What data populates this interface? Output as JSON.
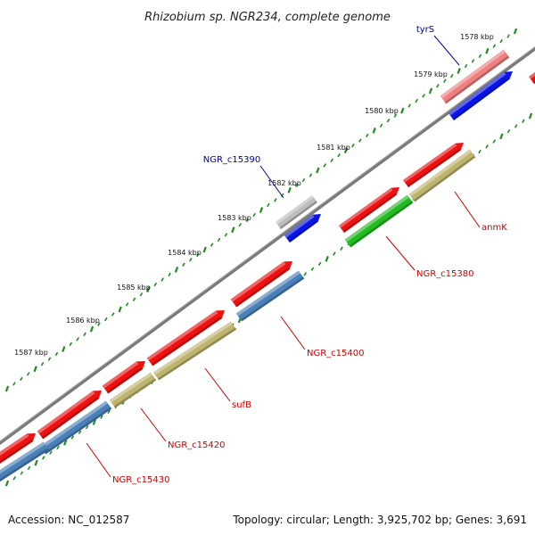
{
  "title": "Rhizobium sp. NGR234, complete genome",
  "footer": {
    "accession": "Accession: NC_012587",
    "summary": "Topology: circular; Length: 3,925,702 bp; Genes: 3,691"
  },
  "colors": {
    "backbone": "#7a7a7a",
    "ruler_dots": "#1f8a1f",
    "red_gene": "#ee1111",
    "pink_gene": "#f08080",
    "blue_gene": "#0a14e6",
    "steel_gene": "#4a80b8",
    "olive_gene": "#bdb46e",
    "green_gene": "#22bb22",
    "grey_gene": "#bdbdbd",
    "label_red": "#cc0000",
    "label_blue": "#000099"
  },
  "kbp_labels": [
    "1578 kbp",
    "1579 kbp",
    "1580 kbp",
    "1581 kbp",
    "1582 kbp",
    "1583 kbp",
    "1584 kbp",
    "1585 kbp",
    "1586 kbp",
    "1587 kbp"
  ],
  "gene_labels": [
    {
      "text": "tyrS",
      "color": "label_blue"
    },
    {
      "text": "NGR_c15390",
      "color": "label_blue"
    },
    {
      "text": "anmK",
      "color": "label_red"
    },
    {
      "text": "NGR_c15380",
      "color": "label_red"
    },
    {
      "text": "NGR_c15400",
      "color": "label_red"
    },
    {
      "text": "sufB",
      "color": "label_red"
    },
    {
      "text": "NGR_c15420",
      "color": "label_red"
    },
    {
      "text": "NGR_c15430",
      "color": "label_red"
    }
  ],
  "genes": [
    {
      "name": "tyrS",
      "track": 1,
      "color": "pink_gene"
    },
    {
      "name": "tyrS-blue",
      "track": 2,
      "color": "blue_gene"
    },
    {
      "name": "edge-red",
      "track": 1,
      "color": "red_gene"
    },
    {
      "name": "NGR_c15390",
      "track": 1,
      "color": "grey_gene"
    },
    {
      "name": "NGR_c15390-blue",
      "track": 2,
      "color": "blue_gene"
    },
    {
      "name": "anmK-red",
      "track": 1,
      "color": "red_gene"
    },
    {
      "name": "anmK",
      "track": 2,
      "color": "olive_gene"
    },
    {
      "name": "NGR_c15380-red",
      "track": 1,
      "color": "red_gene"
    },
    {
      "name": "NGR_c15380",
      "track": 2,
      "color": "green_gene"
    },
    {
      "name": "NGR_c15400-red",
      "track": 1,
      "color": "red_gene"
    },
    {
      "name": "NGR_c15400",
      "track": 2,
      "color": "steel_gene"
    },
    {
      "name": "sufB-red",
      "track": 1,
      "color": "red_gene"
    },
    {
      "name": "sufB",
      "track": 2,
      "color": "olive_gene"
    },
    {
      "name": "NGR_c15420-red",
      "track": 1,
      "color": "red_gene"
    },
    {
      "name": "NGR_c15420",
      "track": 2,
      "color": "olive_gene"
    },
    {
      "name": "NGR_c15430-red",
      "track": 1,
      "color": "red_gene"
    },
    {
      "name": "NGR_c15430",
      "track": 2,
      "color": "steel_gene"
    }
  ]
}
